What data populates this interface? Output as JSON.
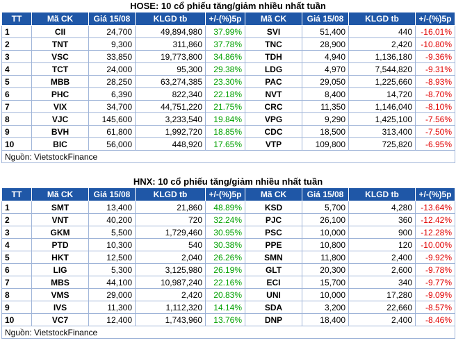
{
  "colors": {
    "header_bg": "#1f57a7",
    "up": "#00a000",
    "down": "#e00000",
    "border": "#9fb4d8"
  },
  "hose": {
    "title": "HOSE: 10 cổ phiếu tăng/giảm nhiều nhất tuần",
    "headers": [
      "TT",
      "Mã CK",
      "Giá 15/08",
      "KLGD tb",
      "+/-(%)5p",
      "Mã CK",
      "Giá 15/08",
      "KLGD tb",
      "+/-(%)5p"
    ],
    "rows": [
      [
        "1",
        "CII",
        "24,700",
        "49,894,980",
        "37.99%",
        "SVI",
        "51,400",
        "440",
        "-16.01%"
      ],
      [
        "2",
        "TNT",
        "9,300",
        "311,860",
        "37.78%",
        "TNC",
        "28,900",
        "2,420",
        "-10.80%"
      ],
      [
        "3",
        "VSC",
        "33,850",
        "19,773,800",
        "34.86%",
        "TDH",
        "4,940",
        "1,136,180",
        "-9.36%"
      ],
      [
        "4",
        "TCT",
        "24,000",
        "95,300",
        "29.38%",
        "LDG",
        "4,970",
        "7,544,820",
        "-9.31%"
      ],
      [
        "5",
        "MBB",
        "28,250",
        "63,274,385",
        "23.30%",
        "PAC",
        "29,050",
        "1,225,660",
        "-8.93%"
      ],
      [
        "6",
        "PHC",
        "6,390",
        "822,340",
        "22.18%",
        "NVT",
        "8,400",
        "14,720",
        "-8.70%"
      ],
      [
        "7",
        "VIX",
        "34,700",
        "44,751,220",
        "21.75%",
        "CRC",
        "11,350",
        "1,146,040",
        "-8.10%"
      ],
      [
        "8",
        "VJC",
        "145,600",
        "3,233,540",
        "19.84%",
        "VPG",
        "9,290",
        "1,425,100",
        "-7.56%"
      ],
      [
        "9",
        "BVH",
        "61,800",
        "1,992,720",
        "18.85%",
        "CDC",
        "18,500",
        "313,400",
        "-7.50%"
      ],
      [
        "10",
        "BIC",
        "56,000",
        "448,920",
        "17.65%",
        "VTP",
        "109,800",
        "725,820",
        "-6.95%"
      ]
    ],
    "source": "Nguồn: VietstockFinance"
  },
  "hnx": {
    "title": "HNX: 10 cổ phiếu tăng/giảm nhiều nhất tuần",
    "headers": [
      "TT",
      "Mã CK",
      "Giá 15/08",
      "KLGD tb",
      "+/-(%)5p",
      "Mã CK",
      "Giá 15/08",
      "KLGD tb",
      "+/-(%)5p"
    ],
    "rows": [
      [
        "1",
        "SMT",
        "13,400",
        "21,860",
        "48.89%",
        "KSD",
        "5,700",
        "4,280",
        "-13.64%"
      ],
      [
        "2",
        "VNT",
        "40,200",
        "720",
        "32.24%",
        "PJC",
        "26,100",
        "360",
        "-12.42%"
      ],
      [
        "3",
        "GKM",
        "5,500",
        "1,729,460",
        "30.95%",
        "PSC",
        "10,000",
        "900",
        "-12.28%"
      ],
      [
        "4",
        "PTD",
        "10,300",
        "540",
        "30.38%",
        "PPE",
        "10,800",
        "120",
        "-10.00%"
      ],
      [
        "5",
        "HKT",
        "12,500",
        "2,040",
        "26.26%",
        "SMN",
        "11,800",
        "2,400",
        "-9.92%"
      ],
      [
        "6",
        "LIG",
        "5,300",
        "3,125,980",
        "26.19%",
        "GLT",
        "20,300",
        "2,600",
        "-9.78%"
      ],
      [
        "7",
        "MBS",
        "44,100",
        "10,987,240",
        "22.16%",
        "ECI",
        "15,700",
        "340",
        "-9.77%"
      ],
      [
        "8",
        "VMS",
        "29,000",
        "2,420",
        "20.83%",
        "UNI",
        "10,000",
        "17,280",
        "-9.09%"
      ],
      [
        "9",
        "IVS",
        "11,300",
        "1,112,320",
        "14.14%",
        "SDA",
        "3,200",
        "22,660",
        "-8.57%"
      ],
      [
        "10",
        "VC7",
        "12,400",
        "1,743,960",
        "13.76%",
        "DNP",
        "18,400",
        "2,400",
        "-8.46%"
      ]
    ],
    "source": "Nguồn: VietstockFinance"
  }
}
